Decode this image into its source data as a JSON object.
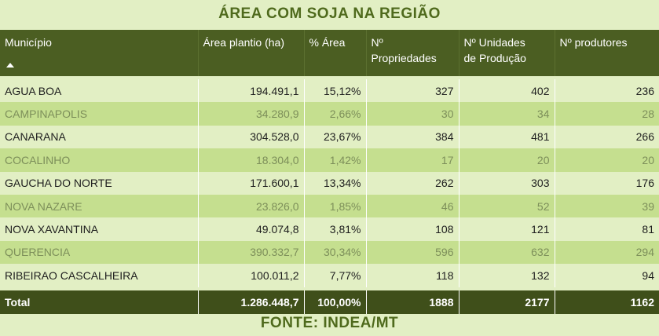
{
  "title": "ÁREA COM SOJA NA REGIÃO",
  "footer": "FONTE: INDEA/MT",
  "columns": [
    "Município",
    "Área plantio (ha)",
    "% Área",
    "Nº Propriedades",
    "Nº Unidades de Produção",
    "Nº produtores"
  ],
  "sort_indicator": "sort-ascending-icon",
  "rows": [
    [
      "AGUA BOA",
      "194.491,1",
      "15,12%",
      "327",
      "402",
      "236"
    ],
    [
      "CAMPINAPOLIS",
      "34.280,9",
      "2,66%",
      "30",
      "34",
      "28"
    ],
    [
      "CANARANA",
      "304.528,0",
      "23,67%",
      "384",
      "481",
      "266"
    ],
    [
      "COCALINHO",
      "18.304,0",
      "1,42%",
      "17",
      "20",
      "20"
    ],
    [
      "GAUCHA DO NORTE",
      "171.600,1",
      "13,34%",
      "262",
      "303",
      "176"
    ],
    [
      "NOVA NAZARE",
      "23.826,0",
      "1,85%",
      "46",
      "52",
      "39"
    ],
    [
      "NOVA XAVANTINA",
      "49.074,8",
      "3,81%",
      "108",
      "121",
      "81"
    ],
    [
      "QUERENCIA",
      "390.332,7",
      "30,34%",
      "596",
      "632",
      "294"
    ],
    [
      "RIBEIRAO CASCALHEIRA",
      "100.011,2",
      "7,77%",
      "118",
      "132",
      "94"
    ]
  ],
  "total": [
    "Total",
    "1.286.448,7",
    "100,00%",
    "1888",
    "2177",
    "1162"
  ],
  "colors": {
    "header_bg": "#4b5e22",
    "total_bg": "#3f4f1a",
    "row_light": "#e2efc4",
    "row_dark": "#c5df8f",
    "title_text": "#4f6a1d"
  }
}
